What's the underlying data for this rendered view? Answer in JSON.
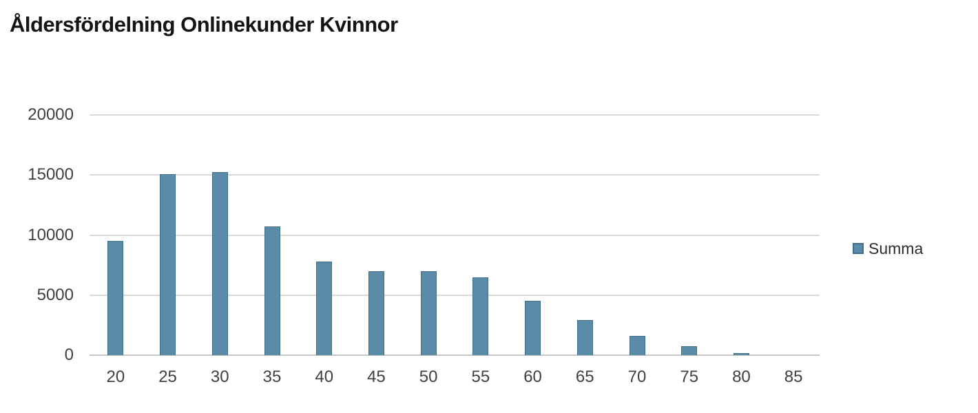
{
  "title": "Åldersfördelning Onlinekunder Kvinnor",
  "legend": {
    "label": "Summa",
    "swatch_color": "#5A8CA8"
  },
  "chart_data": {
    "type": "bar",
    "title": "Åldersfördelning Onlinekunder Kvinnor",
    "categories": [
      "20",
      "25",
      "30",
      "35",
      "40",
      "45",
      "50",
      "55",
      "60",
      "65",
      "70",
      "75",
      "80",
      "85"
    ],
    "series": [
      {
        "name": "Summa",
        "values": [
          9500,
          15100,
          15250,
          10700,
          7800,
          7000,
          7000,
          6500,
          4500,
          2900,
          1600,
          750,
          200,
          0
        ]
      }
    ],
    "xlabel": "",
    "ylabel": "",
    "ylim": [
      0,
      20000
    ],
    "yticks": [
      0,
      5000,
      10000,
      15000,
      20000
    ],
    "grid": true,
    "legend_position": "right",
    "colors": {
      "bar_fill": "#5A8CA8",
      "bar_border": "#3E6D8C",
      "gridline": "#D9D9D9",
      "baseline": "#C6C6C6",
      "tick_label": "#3F3F3F",
      "title": "#141414",
      "background": "#FFFFFF"
    }
  }
}
